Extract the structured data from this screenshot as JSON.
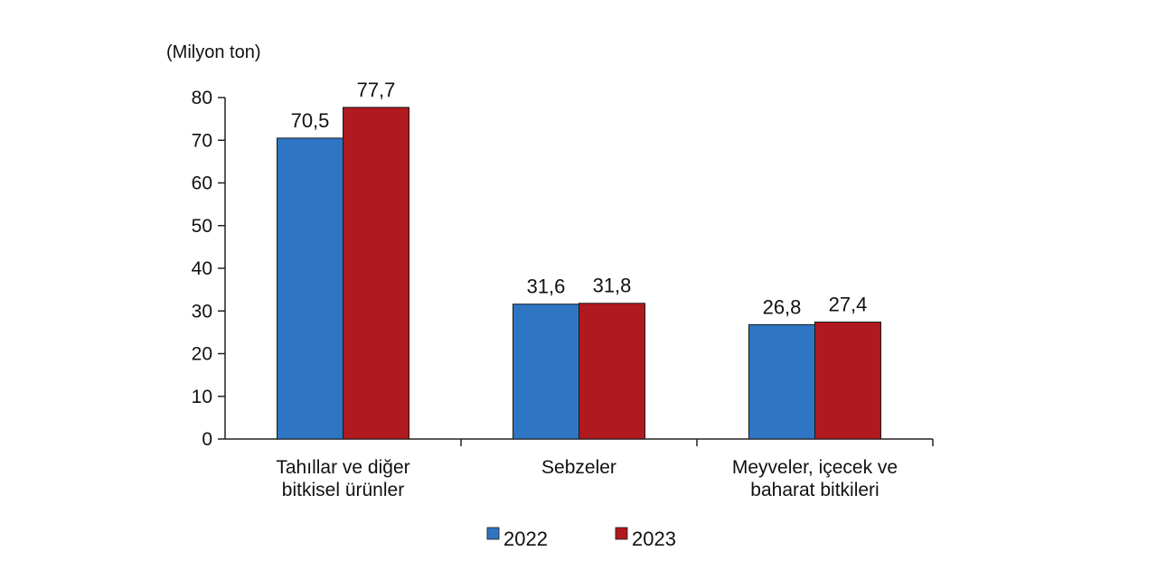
{
  "chart_data": {
    "type": "bar",
    "ylabel": "(Milyon ton)",
    "ylim": [
      0,
      80
    ],
    "yticks": [
      "0",
      "10",
      "20",
      "30",
      "40",
      "50",
      "60",
      "70",
      "80"
    ],
    "categories": [
      [
        "Tahıllar ve diğer",
        "bitkisel ürünler"
      ],
      [
        "Sebzeler"
      ],
      [
        "Meyveler, içecek ve",
        "baharat  bitkileri"
      ]
    ],
    "series": [
      {
        "name": "2022",
        "color": "#2E75C4",
        "values": [
          70.5,
          31.6,
          26.8
        ],
        "labels": [
          "70,5",
          "31,6",
          "26,8"
        ]
      },
      {
        "name": "2023",
        "color": "#B0191F",
        "values": [
          77.7,
          31.8,
          27.4
        ],
        "labels": [
          "77,7",
          "31,8",
          "27,4"
        ]
      }
    ],
    "legend_position": "bottom",
    "grid": false
  }
}
